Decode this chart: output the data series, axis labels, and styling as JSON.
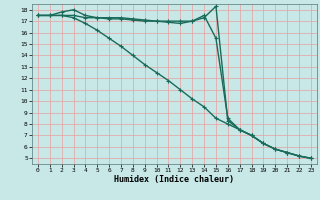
{
  "xlabel": "Humidex (Indice chaleur)",
  "ylabel": "",
  "background_color": "#c8e8e8",
  "grid_color": "#e8a0a0",
  "line_color": "#1a6b5a",
  "xlim": [
    -0.5,
    23.5
  ],
  "ylim": [
    4.5,
    18.5
  ],
  "xticks": [
    0,
    1,
    2,
    3,
    4,
    5,
    6,
    7,
    8,
    9,
    10,
    11,
    12,
    13,
    14,
    15,
    16,
    17,
    18,
    19,
    20,
    21,
    22,
    23
  ],
  "yticks": [
    5,
    6,
    7,
    8,
    9,
    10,
    11,
    12,
    13,
    14,
    15,
    16,
    17,
    18
  ],
  "line1_x": [
    0,
    1,
    2,
    3,
    4,
    5,
    6,
    7,
    8,
    9,
    10,
    11,
    12,
    13,
    14,
    15,
    16,
    17,
    18,
    19,
    20,
    21,
    22,
    23
  ],
  "line1_y": [
    17.5,
    17.5,
    17.8,
    18.0,
    17.5,
    17.3,
    17.3,
    17.3,
    17.2,
    17.1,
    17.0,
    17.0,
    17.0,
    17.0,
    17.3,
    18.3,
    8.3,
    7.5,
    7.0,
    6.3,
    5.8,
    5.5,
    5.2,
    5.0
  ],
  "line2_x": [
    0,
    1,
    2,
    3,
    4,
    5,
    6,
    7,
    8,
    9,
    10,
    11,
    12,
    13,
    14,
    15,
    16,
    17,
    18,
    19,
    20,
    21,
    22,
    23
  ],
  "line2_y": [
    17.5,
    17.5,
    17.5,
    17.3,
    16.8,
    16.2,
    15.5,
    14.8,
    14.0,
    13.2,
    12.5,
    11.8,
    11.0,
    10.2,
    9.5,
    8.5,
    8.0,
    7.5,
    7.0,
    6.3,
    5.8,
    5.5,
    5.2,
    5.0
  ],
  "line3_x": [
    0,
    1,
    2,
    3,
    4,
    5,
    6,
    7,
    8,
    9,
    10,
    11,
    12,
    13,
    14,
    15,
    16,
    17,
    18,
    19,
    20,
    21,
    22,
    23
  ],
  "line3_y": [
    17.5,
    17.5,
    17.5,
    17.5,
    17.3,
    17.3,
    17.2,
    17.2,
    17.1,
    17.0,
    17.0,
    16.9,
    16.8,
    17.0,
    17.5,
    15.5,
    8.5,
    7.5,
    7.0,
    6.3,
    5.8,
    5.5,
    5.2,
    5.0
  ],
  "xlabel_fontsize": 6,
  "tick_fontsize": 4.5,
  "lw": 1.0,
  "ms": 3
}
